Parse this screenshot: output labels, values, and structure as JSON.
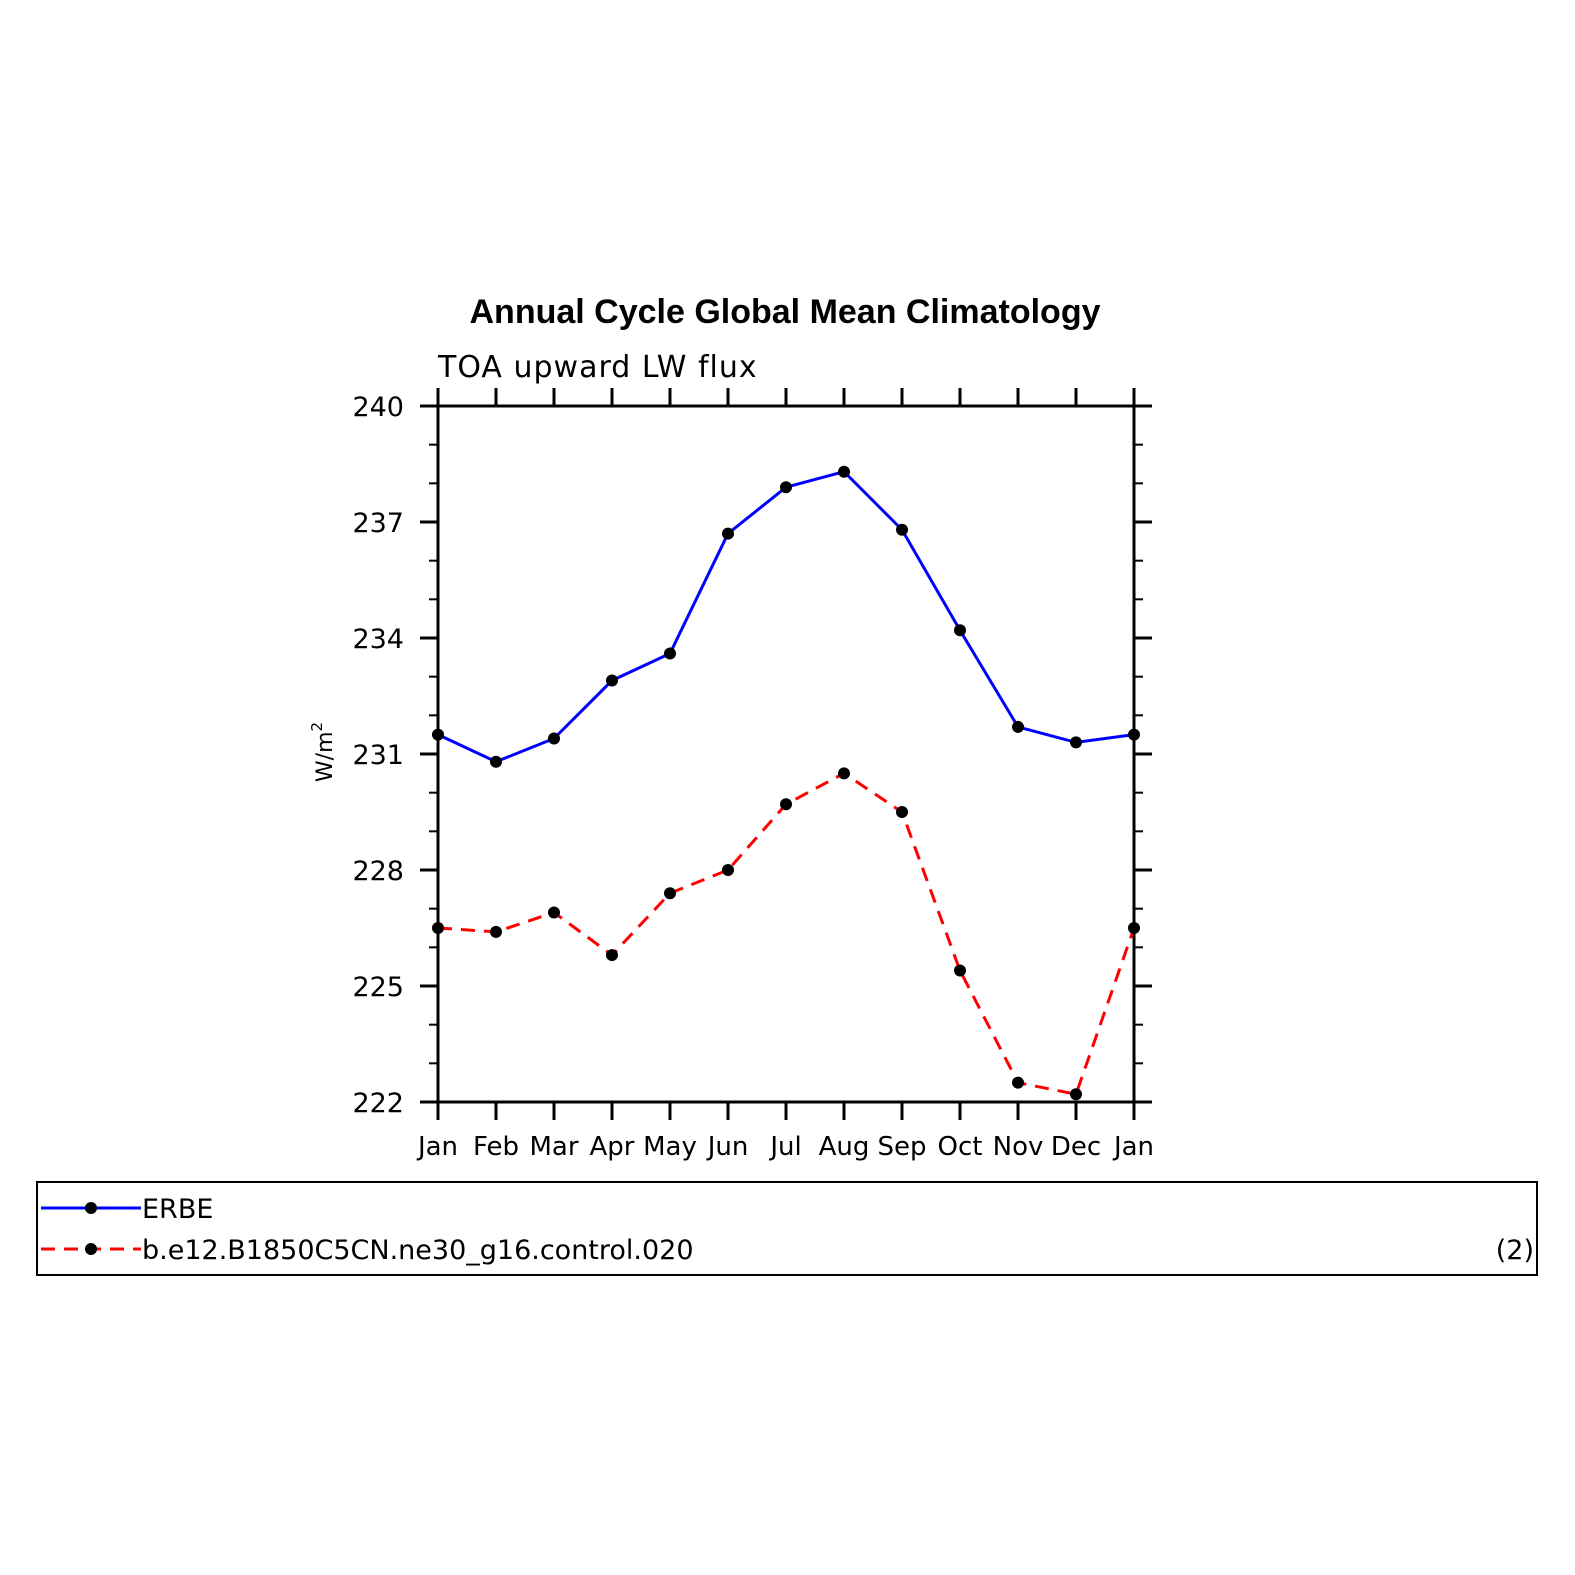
{
  "chart_data": {
    "type": "line",
    "title": "Annual Cycle Global Mean Climatology",
    "subtitle": "TOA upward LW flux",
    "ylabel": "W/m",
    "ylabel_superscript": "2",
    "ylim": [
      222,
      240
    ],
    "yticks": [
      222,
      225,
      228,
      231,
      234,
      237,
      240
    ],
    "categories": [
      "Jan",
      "Feb",
      "Mar",
      "Apr",
      "May",
      "Jun",
      "Jul",
      "Aug",
      "Sep",
      "Oct",
      "Nov",
      "Dec",
      "Jan"
    ],
    "series": [
      {
        "name": "ERBE",
        "color": "#0000ff",
        "dash": "solid",
        "values": [
          231.5,
          230.8,
          231.4,
          232.9,
          233.6,
          236.7,
          237.9,
          238.3,
          236.8,
          234.2,
          231.7,
          231.3,
          231.5
        ]
      },
      {
        "name": "b.e12.B1850C5CN.ne30_g16.control.020",
        "color": "#ff0000",
        "dash": "dashed",
        "values": [
          226.5,
          226.4,
          226.9,
          225.8,
          227.4,
          228.0,
          229.7,
          230.5,
          229.5,
          225.4,
          222.5,
          222.2,
          226.5
        ]
      }
    ],
    "legend": {
      "position": "bottom",
      "note": "(2)"
    },
    "grid": false
  }
}
